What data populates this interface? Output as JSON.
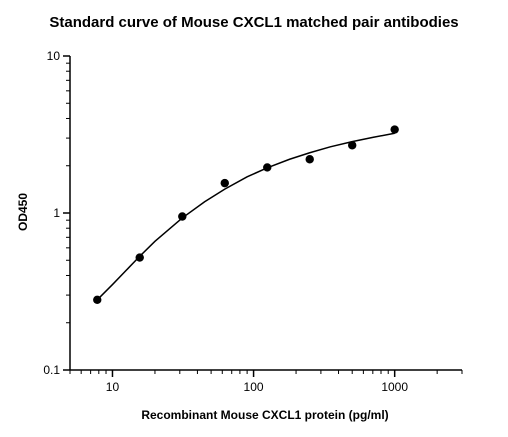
{
  "chart_data": {
    "type": "scatter",
    "title": "Standard curve of Mouse CXCL1 matched pair antibodies",
    "xlabel": "Recombinant Mouse CXCL1 protein (pg/ml)",
    "ylabel": "OD450",
    "x_scale": "log",
    "y_scale": "log",
    "xlim": [
      5,
      3000
    ],
    "ylim": [
      0.1,
      10
    ],
    "x_ticks": [
      {
        "value": 10,
        "label": "10"
      },
      {
        "value": 100,
        "label": "100"
      },
      {
        "value": 1000,
        "label": "1000"
      }
    ],
    "y_ticks": [
      {
        "value": 0.1,
        "label": "0.1"
      },
      {
        "value": 1,
        "label": "1"
      },
      {
        "value": 10,
        "label": "10"
      }
    ],
    "grid": false,
    "legend": "none",
    "colors": {
      "points": "#000000",
      "curve": "#000000",
      "axes": "#000000"
    },
    "series": [
      {
        "x": [
          7.8,
          15.6,
          31.25,
          62.5,
          125,
          250,
          500,
          1000
        ],
        "y": [
          0.28,
          0.52,
          0.95,
          1.55,
          1.95,
          2.2,
          2.7,
          3.4
        ]
      }
    ],
    "fit_curve": {
      "x": [
        7.8,
        10,
        15.6,
        20,
        31.25,
        45,
        62.5,
        90,
        125,
        180,
        250,
        350,
        500,
        700,
        1000
      ],
      "y": [
        0.28,
        0.35,
        0.53,
        0.66,
        0.93,
        1.18,
        1.42,
        1.7,
        1.94,
        2.2,
        2.42,
        2.64,
        2.85,
        3.03,
        3.22
      ]
    }
  }
}
